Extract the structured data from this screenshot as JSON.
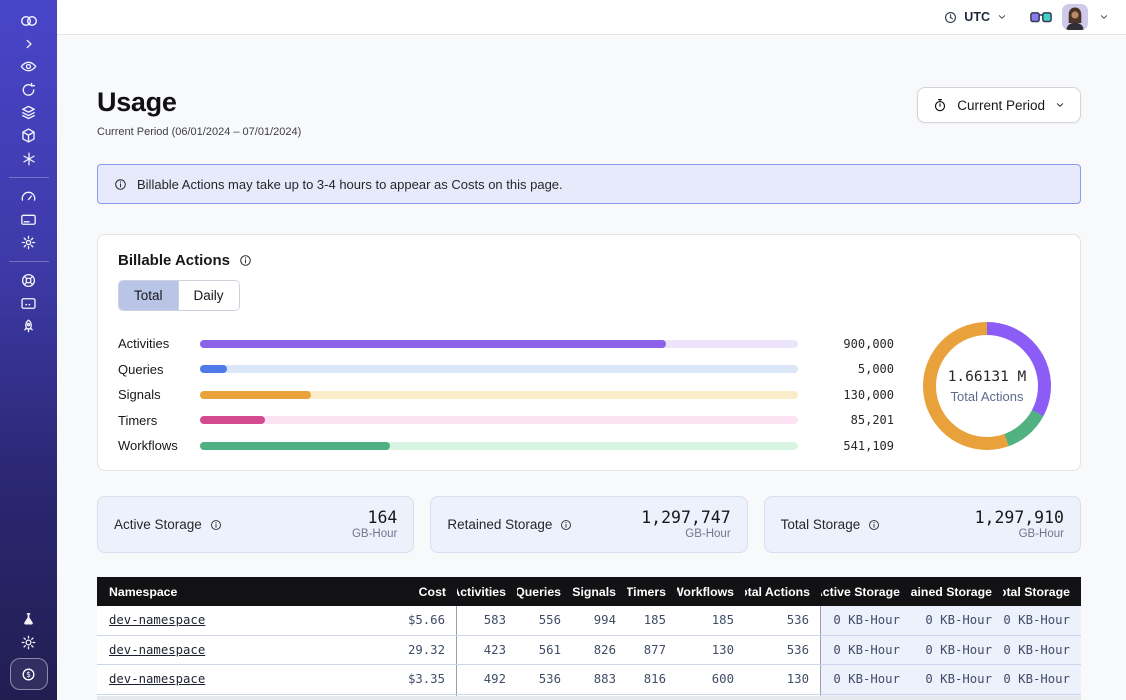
{
  "topbar": {
    "timezone": "UTC"
  },
  "sidebar_icons": [
    "temporal-logo",
    "chevron-right",
    "eye",
    "retry-clock",
    "layers",
    "cube",
    "asterisk",
    "gauge",
    "credit-card",
    "gear",
    "lifebuoy",
    "screen",
    "rocket",
    "flask",
    "sun",
    "dollar-coin"
  ],
  "page": {
    "title": "Usage",
    "subtitle": "Current Period (06/01/2024 – 07/01/2024)",
    "period_button_label": "Current Period"
  },
  "banner": {
    "text": "Billable Actions may take up to 3-4 hours to appear as Costs on this page."
  },
  "billable": {
    "title": "Billable Actions",
    "tabs": [
      {
        "label": "Total",
        "active": true
      },
      {
        "label": "Daily",
        "active": false
      }
    ]
  },
  "chart_data": [
    {
      "type": "bar",
      "orientation": "horizontal",
      "title": "Billable Actions",
      "categories": [
        "Activities",
        "Queries",
        "Signals",
        "Timers",
        "Workflows"
      ],
      "values": [
        900000,
        5000,
        130000,
        85201,
        541109
      ],
      "value_labels": [
        "900,000",
        "5,000",
        "130,000",
        "85,201",
        "541,109"
      ],
      "bar_fill_pct": [
        78,
        4.5,
        18.6,
        10.9,
        31.7
      ],
      "colors": [
        "#8b63e8",
        "#4f7be8",
        "#e9a13c",
        "#d44a8f",
        "#50b081"
      ],
      "track_colors": [
        "#ebe4fb",
        "#dce6f9",
        "#fbecc9",
        "#fce3f4",
        "#d8f5e4"
      ]
    },
    {
      "type": "pie",
      "subtype": "donut",
      "center_value": "1.66131 M",
      "center_label": "Total Actions",
      "segments": [
        {
          "name": "activities",
          "color": "#8b5cf6",
          "start_deg": 0,
          "end_deg": 118
        },
        {
          "name": "workflows",
          "color": "#52b181",
          "start_deg": 118,
          "end_deg": 160
        },
        {
          "name": "signals",
          "color": "#e9a13c",
          "start_deg": 160,
          "end_deg": 360
        }
      ]
    }
  ],
  "storage_cards": [
    {
      "label": "Active Storage",
      "value": "164",
      "unit": "GB-Hour"
    },
    {
      "label": "Retained Storage",
      "value": "1,297,747",
      "unit": "GB-Hour"
    },
    {
      "label": "Total Storage",
      "value": "1,297,910",
      "unit": "GB-Hour"
    }
  ],
  "table": {
    "columns": [
      "Namespace",
      "Cost",
      "Activities",
      "Queries",
      "Signals",
      "Timers",
      "Workflows",
      "Total Actions",
      "Active Storage",
      "Retained Storage",
      "Total Storage"
    ],
    "rows": [
      [
        "dev-namespace",
        "$5.66",
        "583",
        "556",
        "994",
        "185",
        "185",
        "536",
        "0 KB-Hour",
        "0 KB-Hour",
        "0 KB-Hour"
      ],
      [
        "dev-namespace",
        "29.32",
        "423",
        "561",
        "826",
        "877",
        "130",
        "536",
        "0 KB-Hour",
        "0 KB-Hour",
        "0 KB-Hour"
      ],
      [
        "dev-namespace",
        "$3.35",
        "492",
        "536",
        "883",
        "816",
        "600",
        "130",
        "0 KB-Hour",
        "0 KB-Hour",
        "0 KB-Hour"
      ]
    ]
  }
}
